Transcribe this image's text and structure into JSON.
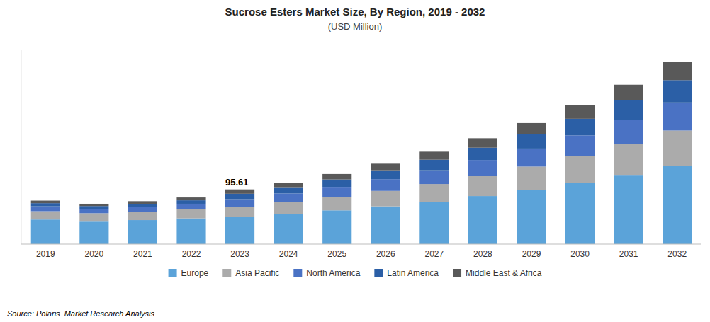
{
  "chart_data": {
    "type": "bar",
    "stacked": true,
    "title": "Sucrose Esters Market Size, By Region, 2019 - 2032",
    "subtitle": "(USD Million)",
    "source": "Source: Polaris  Market Research Analysis",
    "categories": [
      "2019",
      "2020",
      "2021",
      "2022",
      "2023",
      "2024",
      "2025",
      "2026",
      "2027",
      "2028",
      "2029",
      "2030",
      "2031",
      "2032"
    ],
    "series": [
      {
        "name": "Europe",
        "color": "#5BA3D9",
        "values": [
          43.0,
          40.5,
          42.0,
          45.0,
          47.5,
          53.0,
          59.0,
          66.0,
          74.0,
          84.0,
          95.0,
          107.0,
          121.0,
          137.0
        ]
      },
      {
        "name": "Asia Pacific",
        "color": "#ABABAB",
        "values": [
          14.5,
          13.5,
          14.5,
          16.0,
          18.0,
          20.5,
          23.5,
          27.0,
          31.0,
          35.5,
          40.5,
          46.5,
          53.5,
          61.5
        ]
      },
      {
        "name": "North America",
        "color": "#4A72C4",
        "values": [
          8.5,
          7.5,
          8.5,
          9.5,
          13.0,
          15.0,
          17.5,
          20.5,
          24.0,
          27.5,
          31.5,
          36.5,
          42.5,
          49.0
        ]
      },
      {
        "name": "Latin America",
        "color": "#2B5FA6",
        "values": [
          5.5,
          5.0,
          5.5,
          6.0,
          9.5,
          11.0,
          13.0,
          15.5,
          18.5,
          21.5,
          25.0,
          29.0,
          34.0,
          39.0
        ]
      },
      {
        "name": "Middle East & Africa",
        "color": "#595959",
        "values": [
          4.5,
          4.0,
          4.5,
          5.0,
          7.6,
          8.0,
          9.5,
          11.5,
          14.0,
          16.5,
          19.5,
          23.5,
          27.5,
          32.0
        ]
      }
    ],
    "annotations": [
      {
        "text": "95.61",
        "x": "2023"
      }
    ],
    "ylim": [
      0,
      340
    ],
    "tick_labels": "x",
    "grid": false,
    "legend": "bottom"
  }
}
